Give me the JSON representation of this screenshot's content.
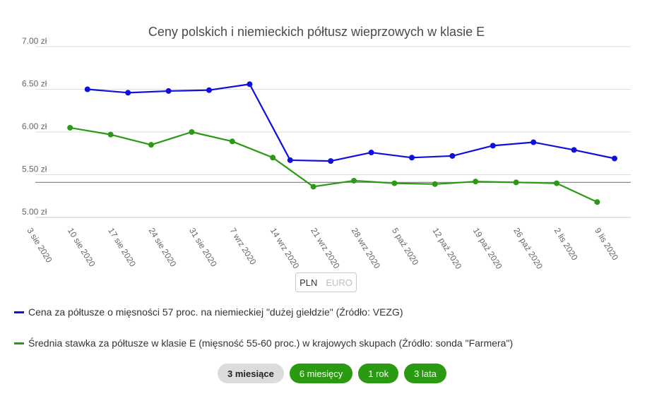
{
  "chart_data": {
    "type": "line",
    "title": "Ceny polskich i niemieckich półtusz wieprzowych w klasie E",
    "y_ticks": [
      "7.00 zł",
      "6.50 zł",
      "6.00 zł",
      "5.50 zł",
      "5.00 zł"
    ],
    "ylim": [
      5.0,
      7.0
    ],
    "x_ticks": [
      "3 sie 2020",
      "10 sie 2020",
      "17 sie 2020",
      "24 sie 2020",
      "31 sie 2020",
      "7 wrz 2020",
      "14 wrz 2020",
      "21 wrz 2020",
      "28 wrz 2020",
      "5 paź 2020",
      "12 paź 2020",
      "19 paź 2020",
      "26 paź 2020",
      "2 lis 2020",
      "9 lis 2020"
    ],
    "grid": true,
    "legend_position": "bottom",
    "reference_line": 5.41,
    "series": [
      {
        "name": "Cena za półtusze o mięsności 57 proc. na niemieckiej \"dużej giełdzie\" (Źródło: VEZG)",
        "color": "#1010dd",
        "x": [
          "12 sie 2020",
          "19 sie 2020",
          "26 sie 2020",
          "2 wrz 2020",
          "9 wrz 2020",
          "16 wrz 2020",
          "23 wrz 2020",
          "30 wrz 2020",
          "7 paź 2020",
          "14 paź 2020",
          "21 paź 2020",
          "28 paź 2020",
          "4 lis 2020",
          "11 lis 2020"
        ],
        "values": [
          6.5,
          6.46,
          6.48,
          6.49,
          6.56,
          5.67,
          5.66,
          5.76,
          5.7,
          5.72,
          5.84,
          5.88,
          5.79,
          5.69
        ]
      },
      {
        "name": "Średnia stawka za półtusze w klasie E (mięsność 55-60 proc.) w krajowych skupach (Źródło: sonda \"Farmera\")",
        "color": "#2a9a13",
        "x": [
          "9 sie 2020",
          "16 sie 2020",
          "23 sie 2020",
          "30 sie 2020",
          "6 wrz 2020",
          "13 wrz 2020",
          "20 wrz 2020",
          "27 wrz 2020",
          "4 paź 2020",
          "11 paź 2020",
          "18 paź 2020",
          "25 paź 2020",
          "1 lis 2020",
          "8 lis 2020"
        ],
        "values": [
          6.05,
          5.97,
          5.85,
          6.0,
          5.89,
          5.7,
          5.36,
          5.43,
          5.4,
          5.39,
          5.42,
          5.41,
          5.4,
          5.18
        ]
      }
    ]
  },
  "currency_toggle": {
    "pln": "PLN",
    "euro": "EURO"
  },
  "range_buttons": [
    "3 miesiące",
    "6 miesięcy",
    "1 rok",
    "3 lata"
  ]
}
